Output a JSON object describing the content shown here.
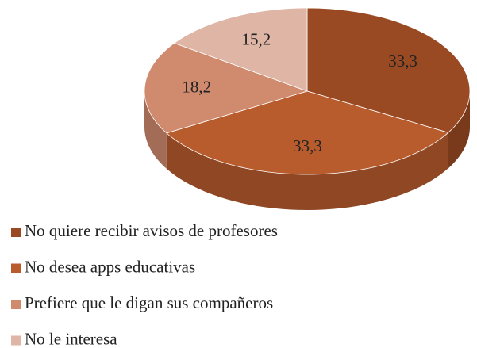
{
  "chart_data": {
    "type": "pie",
    "categories": [
      "No quiere recibir avisos de profesores",
      "No desea apps educativas",
      "Prefiere que le digan sus compañeros",
      "No le interesa"
    ],
    "values": [
      33.3,
      33.3,
      18.2,
      15.2
    ],
    "value_labels": [
      "33,3",
      "33,3",
      "18,2",
      "15,2"
    ],
    "colors": [
      "#9a4a22",
      "#b85c2e",
      "#d08a6e",
      "#dfb5a6"
    ],
    "legend": "bottom"
  }
}
